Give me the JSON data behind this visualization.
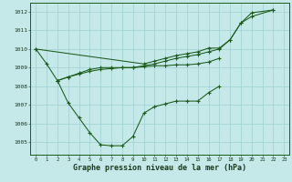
{
  "bg_color": "#c5e8e8",
  "grid_color": "#9ecfcf",
  "line_color": "#1a5c1a",
  "xlabel": "Graphe pression niveau de la mer (hPa)",
  "ylim": [
    1004.3,
    1012.5
  ],
  "xlim": [
    -0.5,
    23.5
  ],
  "yticks": [
    1005,
    1006,
    1007,
    1008,
    1009,
    1010,
    1011,
    1012
  ],
  "xticks": [
    0,
    1,
    2,
    3,
    4,
    5,
    6,
    7,
    8,
    9,
    10,
    11,
    12,
    13,
    14,
    15,
    16,
    17,
    18,
    19,
    20,
    21,
    22,
    23
  ],
  "line1_x": [
    0,
    1,
    2,
    3,
    4,
    5,
    6,
    7,
    8,
    9,
    10,
    11,
    12,
    13,
    14,
    15,
    16,
    17
  ],
  "line1_y": [
    1010.0,
    1009.2,
    1008.3,
    1007.1,
    1006.3,
    1005.5,
    1004.85,
    1004.8,
    1004.8,
    1005.3,
    1006.55,
    1006.9,
    1007.05,
    1007.2,
    1007.2,
    1007.2,
    1007.65,
    1008.0
  ],
  "line2_x": [
    2,
    3,
    4,
    5,
    6,
    7,
    8,
    9,
    10,
    11,
    12,
    13,
    14,
    15,
    16,
    17
  ],
  "line2_y": [
    1008.3,
    1008.5,
    1008.65,
    1008.8,
    1008.9,
    1008.95,
    1009.0,
    1009.0,
    1009.05,
    1009.1,
    1009.1,
    1009.15,
    1009.15,
    1009.2,
    1009.3,
    1009.5
  ],
  "line3_x": [
    2,
    3,
    4,
    5,
    6,
    7,
    8,
    9,
    10,
    11,
    12,
    13,
    14,
    15,
    16,
    17,
    18,
    19,
    20,
    22
  ],
  "line3_y": [
    1008.3,
    1008.5,
    1008.7,
    1008.9,
    1009.0,
    1009.0,
    1009.0,
    1009.0,
    1009.1,
    1009.2,
    1009.35,
    1009.5,
    1009.6,
    1009.7,
    1009.85,
    1010.0,
    1010.5,
    1011.4,
    1011.75,
    1012.1
  ],
  "line4_x": [
    0,
    10,
    11,
    12,
    13,
    14,
    15,
    16,
    17,
    18,
    19,
    20,
    22
  ],
  "line4_y": [
    1010.0,
    1009.2,
    1009.35,
    1009.5,
    1009.65,
    1009.75,
    1009.85,
    1010.05,
    1010.05,
    1010.5,
    1011.4,
    1011.95,
    1012.1
  ]
}
